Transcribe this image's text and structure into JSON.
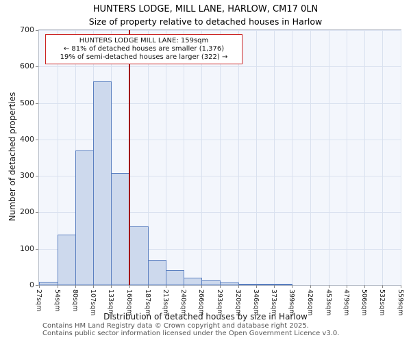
{
  "chart_data": {
    "type": "bar",
    "title": "HUNTERS LODGE, MILL LANE, HARLOW, CM17 0LN",
    "subtitle": "Size of property relative to detached houses in Harlow",
    "xlabel": "Distribution of detached houses by size in Harlow",
    "ylabel": "Number of detached properties",
    "ylim": [
      0,
      700
    ],
    "yticks": [
      0,
      100,
      200,
      300,
      400,
      500,
      600,
      700
    ],
    "grid": true,
    "legend": false,
    "bin_edges_sqm": [
      27,
      54,
      80,
      107,
      133,
      160,
      187,
      213,
      240,
      266,
      293,
      320,
      346,
      373,
      399,
      426,
      453,
      479,
      506,
      532,
      559
    ],
    "tick_labels": [
      "27sqm",
      "54sqm",
      "80sqm",
      "107sqm",
      "133sqm",
      "160sqm",
      "187sqm",
      "213sqm",
      "240sqm",
      "266sqm",
      "293sqm",
      "320sqm",
      "346sqm",
      "373sqm",
      "399sqm",
      "426sqm",
      "453sqm",
      "479sqm",
      "506sqm",
      "532sqm",
      "559sqm"
    ],
    "values": [
      10,
      138,
      370,
      560,
      308,
      162,
      70,
      42,
      20,
      14,
      7,
      4,
      3,
      1,
      0,
      0,
      0,
      0,
      0,
      0
    ],
    "marker": {
      "value_sqm": 159,
      "label": "HUNTERS LODGE MILL LANE"
    },
    "annotation": {
      "lines": [
        "HUNTERS LODGE MILL LANE: 159sqm",
        "← 81% of detached houses are smaller (1,376)",
        "19% of semi-detached houses are larger (322) →"
      ],
      "smaller_pct": 81,
      "smaller_count": 1376,
      "larger_pct": 19,
      "larger_count": 322
    },
    "colors": {
      "bar_fill": "#cdd9ed",
      "bar_stroke": "#5a7fc0",
      "grid": "#d9e1ef",
      "plot_bg": "#f3f6fc",
      "marker_line": "#a31515",
      "annotation_border": "#cc2222",
      "axis_frame": "#b9bfc9"
    }
  },
  "footer": {
    "line1": "Contains HM Land Registry data © Crown copyright and database right 2025.",
    "line2": "Contains public sector information licensed under the Open Government Licence v3.0."
  }
}
